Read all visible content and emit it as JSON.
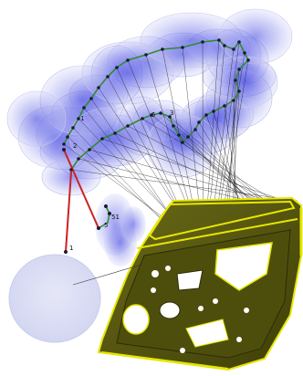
{
  "viewport": {
    "background": "#ffffff"
  },
  "colors": {
    "cloud_fill": "#5a5ee6",
    "cloud_edge": "#b8bcf2",
    "ellipse_fill": "#dcdff5",
    "wire_green": "#2e8b2e",
    "wire_red": "#cc2222",
    "node": "#1a1a3a",
    "ray": "#111111",
    "door_body": "#5a5a10",
    "door_edge": "#e6e600",
    "door_hole": "#ffffff",
    "door_accent": "#2c2c06",
    "small_cloud": "#3a3ad0"
  },
  "labels": {
    "node_a": "1",
    "node_b": "2",
    "node_c": "3",
    "node_d": "5",
    "node_e": "51",
    "node_f": "5",
    "node_g": "1"
  }
}
